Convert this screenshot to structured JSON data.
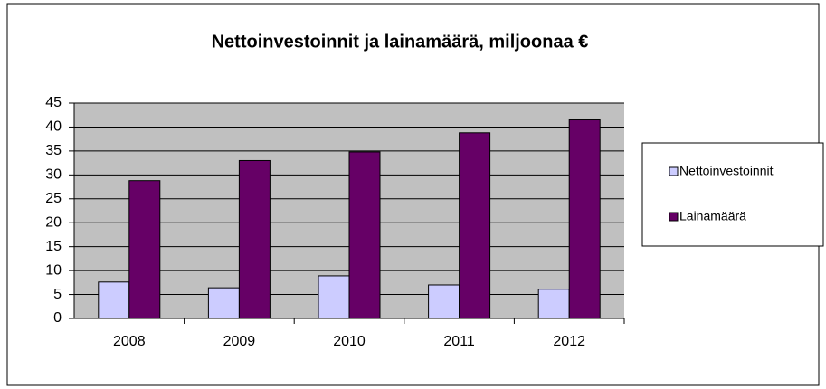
{
  "chart_data": {
    "type": "bar",
    "title": "Nettoinvestoinnit ja lainamäärä, miljoonaa €",
    "categories": [
      "2008",
      "2009",
      "2010",
      "2011",
      "2012"
    ],
    "series": [
      {
        "name": "Nettoinvestoinnit",
        "color": "#ccccff",
        "values": [
          7.6,
          6.4,
          8.9,
          7.0,
          6.1
        ]
      },
      {
        "name": "Lainamäärä",
        "color": "#660066",
        "values": [
          28.8,
          33.0,
          34.8,
          38.8,
          41.5
        ]
      }
    ],
    "ylim": [
      0,
      45
    ],
    "yticks": [
      0,
      5,
      10,
      15,
      20,
      25,
      30,
      35,
      40,
      45
    ],
    "grid": true,
    "legend": "right"
  }
}
